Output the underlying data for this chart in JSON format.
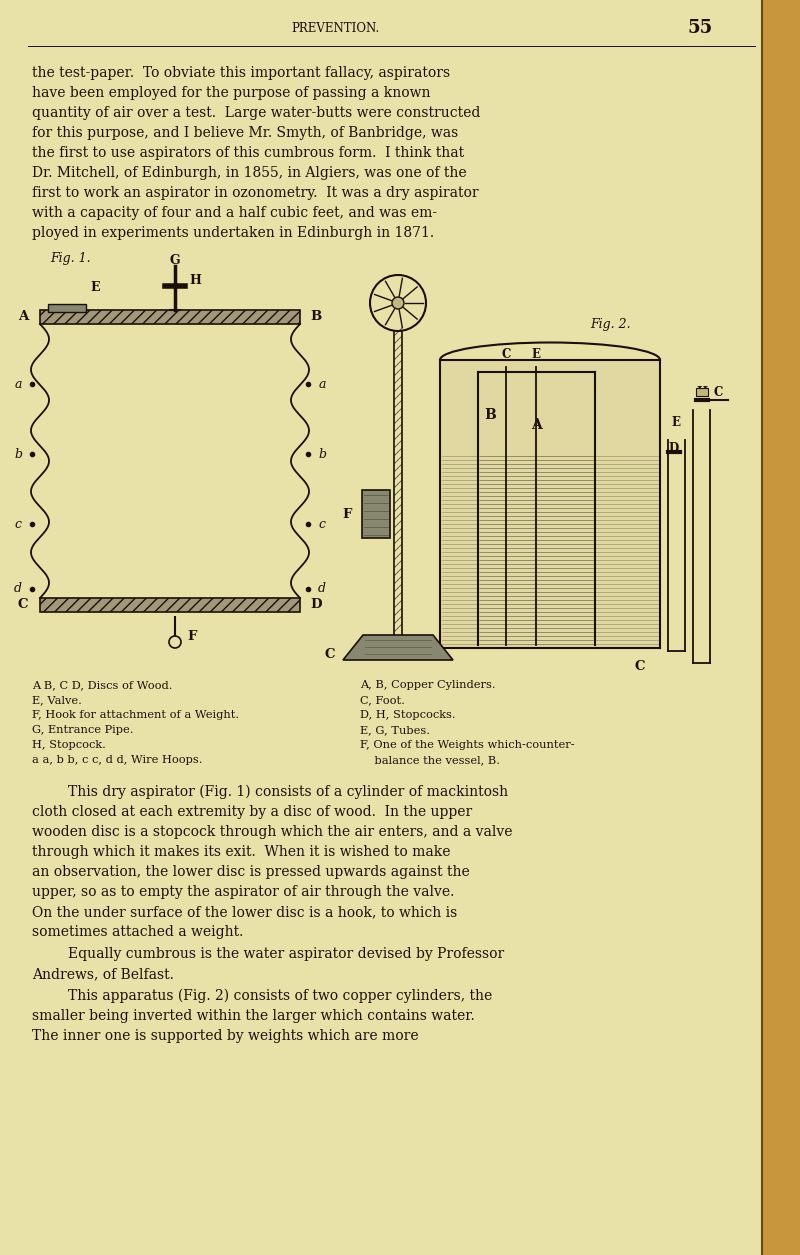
{
  "bg_color": "#e8e2a8",
  "border_color": "#b8903a",
  "text_color": "#1a1008",
  "header_text": "PREVENTION.",
  "page_number": "55",
  "body_text": [
    "the test-paper.  To obviate this important fallacy, aspirators",
    "have been employed for the purpose of passing a known",
    "quantity of air over a test.  Large water-butts were constructed",
    "for this purpose, and I believe Mr. Smyth, of Banbridge, was",
    "the first to use aspirators of this cumbrous form.  I think that",
    "Dr. Mitchell, of Edinburgh, in 1855, in Algiers, was one of the",
    "first to work an aspirator in ozonometry.  It was a dry aspirator",
    "with a capacity of four and a half cubic feet, and was em-",
    "ployed in experiments undertaken in Edinburgh in 1871."
  ],
  "caption_left": [
    "A B, C D, Discs of Wood.",
    "E, Valve.",
    "F, Hook for attachment of a Weight.",
    "G, Entrance Pipe.",
    "H, Stopcock.",
    "a a, b b, c c, d d, Wire Hoops."
  ],
  "caption_right": [
    "A, B, Copper Cylinders.",
    "C, Foot.",
    "D, H, Stopcocks.",
    "E, G, Tubes.",
    "F, One of the Weights which­counter-",
    "    balance the vessel, B."
  ],
  "body_text2_indent": [
    "This dry aspirator (Fig. 1) consists of a cylinder of mackintosh",
    "cloth closed at each extremity by a disc of wood.  In the upper",
    "wooden disc is a stopcock through which the air enters, and a valve",
    "through which it makes its exit.  When it is wished to make",
    "an observation, the lower disc is pressed upwards against the",
    "upper, so as to empty the aspirator of air through the valve.",
    "On the under surface of the lower disc is a hook, to which is",
    "sometimes attached a weight."
  ],
  "body_text2_para2": [
    "Equally cumbrous is the water aspirator devised by Professor",
    "Andrews, of Belfast."
  ],
  "body_text2_para3": [
    "This apparatus (Fig. 2) consists of two copper cylinders, the",
    "smaller being inverted within the larger which contains water.",
    "The inner one is supported by weights which are more"
  ],
  "fig1_label": "Fig. 1.",
  "fig2_label": "Fig. 2."
}
